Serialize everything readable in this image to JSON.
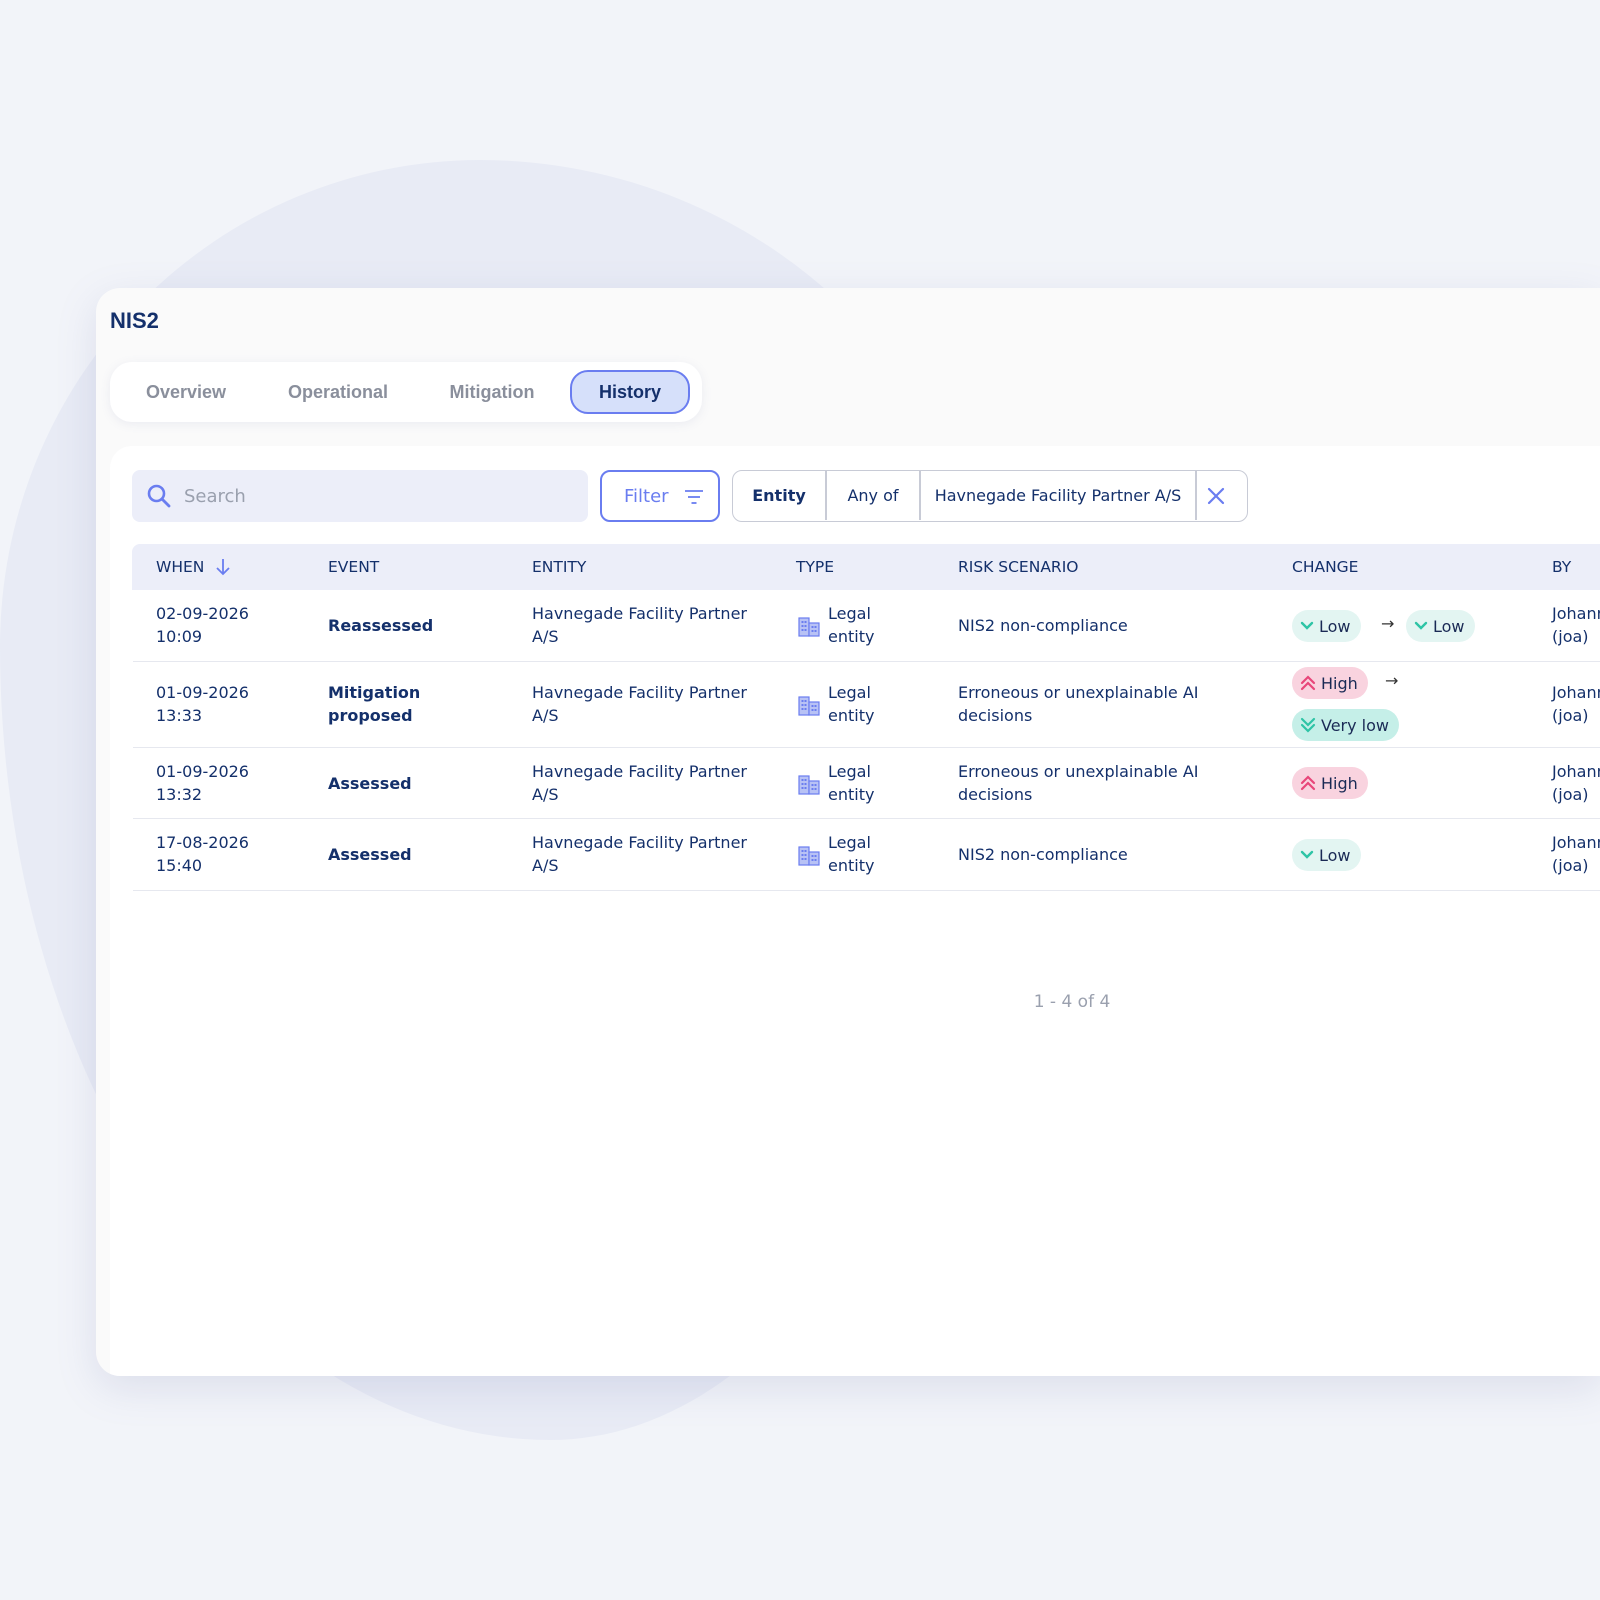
{
  "page": {
    "title": "NIS2"
  },
  "tabs": [
    {
      "label": "Overview"
    },
    {
      "label": "Operational"
    },
    {
      "label": "Mitigation"
    },
    {
      "label": "History",
      "active": true
    }
  ],
  "toolbar": {
    "search_placeholder": "Search",
    "filter_label": "Filter",
    "chip": {
      "field": "Entity",
      "operator": "Any of",
      "value": "Havnegade Facility Partner A/S"
    }
  },
  "table": {
    "columns": [
      "WHEN",
      "EVENT",
      "ENTITY",
      "TYPE",
      "RISK SCENARIO",
      "CHANGE",
      "BY"
    ],
    "rows": [
      {
        "date": "02-09-2026",
        "time": "10:09",
        "event": "Reassessed",
        "entity_1": "Havnegade Facility Partner",
        "entity_2": "A/S",
        "type_1": "Legal",
        "type_2": "entity",
        "risk_1": "NIS2 non-compliance",
        "risk_2": "",
        "change_from": "Low",
        "change_to": "Low",
        "by_1": "Johann",
        "by_2": "(joa)"
      },
      {
        "date": "01-09-2026",
        "time": "13:33",
        "event_1": "Mitigation",
        "event_2": "proposed",
        "entity_1": "Havnegade Facility Partner",
        "entity_2": "A/S",
        "type_1": "Legal",
        "type_2": "entity",
        "risk_1": "Erroneous or unexplainable AI",
        "risk_2": "decisions",
        "change_from": "High",
        "change_to": "Very low",
        "by_1": "Johann",
        "by_2": "(joa)"
      },
      {
        "date": "01-09-2026",
        "time": "13:32",
        "event": "Assessed",
        "entity_1": "Havnegade Facility Partner",
        "entity_2": "A/S",
        "type_1": "Legal",
        "type_2": "entity",
        "risk_1": "Erroneous or unexplainable AI",
        "risk_2": "decisions",
        "change_to": "High",
        "by_1": "Johann",
        "by_2": "(joa)"
      },
      {
        "date": "17-08-2026",
        "time": "15:40",
        "event": "Assessed",
        "entity_1": "Havnegade Facility Partner",
        "entity_2": "A/S",
        "type_1": "Legal",
        "type_2": "entity",
        "risk_1": "NIS2 non-compliance",
        "change_to": "Low",
        "by_1": "Johann",
        "by_2": "(joa)"
      }
    ],
    "arrow": "→",
    "pagination": "1 - 4 of 4"
  },
  "colors": {
    "accent": "#6a7df0",
    "navy": "#14306b",
    "low_badge": "#e3f5f2",
    "high_badge": "#f9d3df",
    "very_low_badge": "#c5efe8",
    "low_icon": "#2ec4a6",
    "high_icon": "#e8467a"
  },
  "icons": {
    "search": "search-icon",
    "filter": "filter-lines-icon",
    "clear": "close-icon",
    "sort": "arrow-down-icon",
    "type": "building-icon",
    "low": "chevron-down-icon",
    "high": "double-chevron-up-icon",
    "very_low": "double-chevron-down-icon"
  }
}
